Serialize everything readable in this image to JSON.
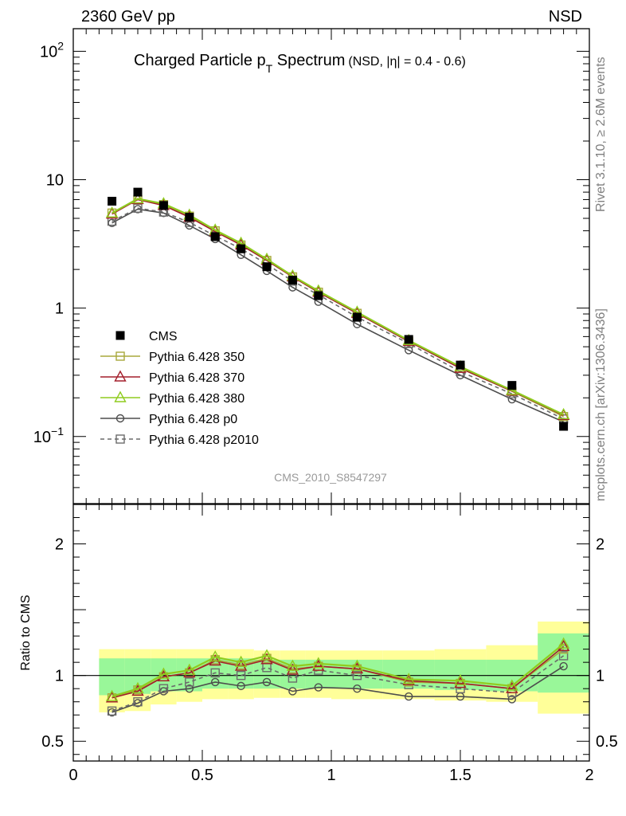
{
  "header": {
    "left": "2360 GeV pp",
    "right": "NSD"
  },
  "side_labels": {
    "rivet": "Rivet 3.1.10, ≥ 2.6M events",
    "mcplots": "mcplots.cern.ch [arXiv:1306.3436]"
  },
  "colors": {
    "cms": "#000000",
    "p350": "#a8a83c",
    "p370": "#a31f2b",
    "p380": "#8fcc1f",
    "p0": "#4d4d4d",
    "p2010": "#6b6b6b",
    "band_outer": "#ffff99",
    "band_inner": "#99f799"
  },
  "chart_data": [
    {
      "type": "line",
      "panel": "main",
      "title": "Charged Particle p",
      "title_sub": "T",
      "title_tail": " Spectrum",
      "title_extra": "(NSD, |η| = 0.4 - 0.6)",
      "watermark": "CMS_2010_S8547297",
      "xlim": [
        0,
        2
      ],
      "ylim": [
        0.03,
        150
      ],
      "yscale": "log",
      "yticklabels": [
        {
          "value": 0.1,
          "base": "10",
          "exp": "−1"
        },
        {
          "value": 1,
          "base": "1",
          "exp": ""
        },
        {
          "value": 10,
          "base": "10",
          "exp": ""
        },
        {
          "value": 100,
          "base": "10",
          "exp": "2"
        }
      ],
      "legend_position": "lower-left",
      "x": [
        0.15,
        0.25,
        0.35,
        0.45,
        0.55,
        0.65,
        0.75,
        0.85,
        0.95,
        1.1,
        1.3,
        1.5,
        1.7,
        1.9
      ],
      "series": [
        {
          "name": "CMS",
          "key": "cms",
          "marker": "filled-square",
          "dashed": false,
          "values": [
            6.8,
            8.0,
            6.3,
            5.1,
            3.6,
            2.9,
            2.1,
            1.65,
            1.25,
            0.85,
            0.57,
            0.36,
            0.25,
            0.12
          ]
        },
        {
          "name": "Pythia 6.428 350",
          "key": "p350",
          "marker": "open-square",
          "dashed": false,
          "values": [
            5.5,
            7.0,
            6.4,
            5.2,
            4.0,
            3.1,
            2.35,
            1.75,
            1.33,
            0.91,
            0.55,
            0.34,
            0.225,
            0.143
          ]
        },
        {
          "name": "Pythia 6.428 370",
          "key": "p370",
          "marker": "open-triangle",
          "dashed": false,
          "values": [
            5.4,
            7.0,
            6.3,
            5.1,
            3.95,
            3.1,
            2.35,
            1.75,
            1.33,
            0.91,
            0.55,
            0.34,
            0.226,
            0.146
          ]
        },
        {
          "name": "Pythia 6.428 380",
          "key": "p380",
          "marker": "open-triangle",
          "dashed": false,
          "values": [
            5.5,
            7.1,
            6.5,
            5.3,
            4.05,
            3.2,
            2.4,
            1.78,
            1.36,
            0.93,
            0.56,
            0.35,
            0.229,
            0.148
          ]
        },
        {
          "name": "Pythia 6.428 p0",
          "key": "p0",
          "marker": "open-circle",
          "dashed": false,
          "values": [
            4.6,
            5.9,
            5.5,
            4.4,
            3.45,
            2.6,
            1.95,
            1.45,
            1.12,
            0.75,
            0.47,
            0.3,
            0.195,
            0.13
          ]
        },
        {
          "name": "Pythia 6.428 p2010",
          "key": "p2010",
          "marker": "open-square",
          "dashed": true,
          "values": [
            4.75,
            6.0,
            5.6,
            4.65,
            3.65,
            2.9,
            2.2,
            1.62,
            1.27,
            0.85,
            0.53,
            0.32,
            0.215,
            0.137
          ]
        }
      ]
    },
    {
      "type": "line",
      "panel": "ratio",
      "ylabel": "Ratio to CMS",
      "xlim": [
        0,
        2
      ],
      "ylim": [
        0.35,
        2.3
      ],
      "xticklabels": [
        {
          "value": 0,
          "text": "0"
        },
        {
          "value": 0.5,
          "text": "0.5"
        },
        {
          "value": 1,
          "text": "1"
        },
        {
          "value": 1.5,
          "text": "1.5"
        },
        {
          "value": 2,
          "text": "2"
        }
      ],
      "yticklabels": [
        {
          "value": 0.5,
          "text": "0.5"
        },
        {
          "value": 1,
          "text": "1"
        },
        {
          "value": 2,
          "text": "2"
        }
      ],
      "bands": [
        {
          "x0": 0.1,
          "x1": 0.2,
          "outer": [
            0.72,
            1.2
          ],
          "inner": [
            0.85,
            1.13
          ]
        },
        {
          "x0": 0.2,
          "x1": 0.3,
          "outer": [
            0.73,
            1.2
          ],
          "inner": [
            0.86,
            1.13
          ]
        },
        {
          "x0": 0.3,
          "x1": 0.4,
          "outer": [
            0.78,
            1.2
          ],
          "inner": [
            0.88,
            1.13
          ]
        },
        {
          "x0": 0.4,
          "x1": 0.5,
          "outer": [
            0.8,
            1.2
          ],
          "inner": [
            0.88,
            1.13
          ]
        },
        {
          "x0": 0.5,
          "x1": 0.6,
          "outer": [
            0.82,
            1.2
          ],
          "inner": [
            0.9,
            1.13
          ]
        },
        {
          "x0": 0.6,
          "x1": 0.7,
          "outer": [
            0.82,
            1.2
          ],
          "inner": [
            0.9,
            1.13
          ]
        },
        {
          "x0": 0.7,
          "x1": 0.8,
          "outer": [
            0.83,
            1.19
          ],
          "inner": [
            0.9,
            1.12
          ]
        },
        {
          "x0": 0.8,
          "x1": 0.9,
          "outer": [
            0.83,
            1.19
          ],
          "inner": [
            0.9,
            1.12
          ]
        },
        {
          "x0": 0.9,
          "x1": 1.0,
          "outer": [
            0.83,
            1.19
          ],
          "inner": [
            0.9,
            1.12
          ]
        },
        {
          "x0": 1.0,
          "x1": 1.2,
          "outer": [
            0.82,
            1.19
          ],
          "inner": [
            0.9,
            1.12
          ]
        },
        {
          "x0": 1.2,
          "x1": 1.4,
          "outer": [
            0.82,
            1.19
          ],
          "inner": [
            0.9,
            1.12
          ]
        },
        {
          "x0": 1.4,
          "x1": 1.6,
          "outer": [
            0.81,
            1.2
          ],
          "inner": [
            0.89,
            1.12
          ]
        },
        {
          "x0": 1.6,
          "x1": 1.8,
          "outer": [
            0.8,
            1.23
          ],
          "inner": [
            0.88,
            1.12
          ]
        },
        {
          "x0": 1.8,
          "x1": 2.0,
          "outer": [
            0.71,
            1.41
          ],
          "inner": [
            0.87,
            1.32
          ]
        }
      ],
      "x": [
        0.15,
        0.25,
        0.35,
        0.45,
        0.55,
        0.65,
        0.75,
        0.85,
        0.95,
        1.1,
        1.3,
        1.5,
        1.7,
        1.9
      ],
      "series": [
        {
          "name": "Pythia 6.428 350",
          "key": "p350",
          "marker": "open-square",
          "dashed": false,
          "values": [
            0.83,
            0.89,
            0.99,
            1.02,
            1.12,
            1.08,
            1.13,
            1.05,
            1.07,
            1.05,
            0.95,
            0.94,
            0.9,
            1.2
          ]
        },
        {
          "name": "Pythia 6.428 370",
          "key": "p370",
          "marker": "open-triangle",
          "dashed": false,
          "values": [
            0.83,
            0.88,
            0.99,
            1.02,
            1.11,
            1.07,
            1.12,
            1.04,
            1.07,
            1.05,
            0.96,
            0.94,
            0.9,
            1.22
          ]
        },
        {
          "name": "Pythia 6.428 380",
          "key": "p380",
          "marker": "open-triangle",
          "dashed": false,
          "values": [
            0.84,
            0.9,
            1.01,
            1.04,
            1.14,
            1.1,
            1.15,
            1.07,
            1.09,
            1.07,
            0.97,
            0.96,
            0.92,
            1.24
          ]
        },
        {
          "name": "Pythia 6.428 p0",
          "key": "p0",
          "marker": "open-circle",
          "dashed": false,
          "values": [
            0.72,
            0.79,
            0.88,
            0.9,
            0.95,
            0.92,
            0.95,
            0.88,
            0.91,
            0.9,
            0.84,
            0.84,
            0.82,
            1.07
          ]
        },
        {
          "name": "Pythia 6.428 p2010",
          "key": "p2010",
          "marker": "open-square",
          "dashed": true,
          "values": [
            0.73,
            0.8,
            0.9,
            0.95,
            1.02,
            1.0,
            1.06,
            0.98,
            1.04,
            1.0,
            0.93,
            0.9,
            0.87,
            1.15
          ]
        }
      ]
    }
  ]
}
